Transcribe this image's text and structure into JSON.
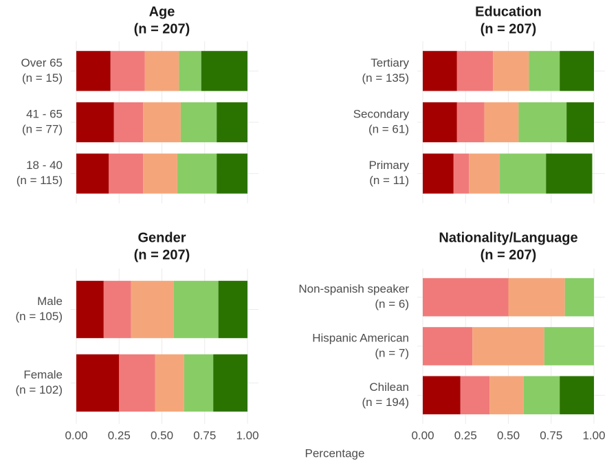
{
  "chart_data": [
    {
      "type": "stacked-bar",
      "title": "Age",
      "subtitle": "(n = 207)",
      "categories": [
        "Over 65",
        "41 - 65",
        "18 - 40"
      ],
      "category_n": [
        "(n = 15)",
        "(n = 77)",
        "(n = 115)"
      ],
      "series": [
        {
          "color": "#a50000",
          "values": [
            0.2,
            0.22,
            0.19
          ]
        },
        {
          "color": "#f07a7a",
          "values": [
            0.2,
            0.17,
            0.2
          ]
        },
        {
          "color": "#f4a67a",
          "values": [
            0.2,
            0.22,
            0.2
          ]
        },
        {
          "color": "#88cc66",
          "values": [
            0.13,
            0.21,
            0.23
          ]
        },
        {
          "color": "#2a7300",
          "values": [
            0.27,
            0.18,
            0.18
          ]
        }
      ],
      "xlim": [
        0,
        1
      ],
      "xticks": [
        0,
        0.25,
        0.5,
        0.75,
        1
      ]
    },
    {
      "type": "stacked-bar",
      "title": "Education",
      "subtitle": "(n = 207)",
      "categories": [
        "Tertiary",
        "Secondary",
        "Primary"
      ],
      "category_n": [
        "(n = 135)",
        "(n = 61)",
        "(n = 11)"
      ],
      "series": [
        {
          "color": "#a50000",
          "values": [
            0.2,
            0.2,
            0.18
          ]
        },
        {
          "color": "#f07a7a",
          "values": [
            0.21,
            0.16,
            0.09
          ]
        },
        {
          "color": "#f4a67a",
          "values": [
            0.21,
            0.2,
            0.18
          ]
        },
        {
          "color": "#88cc66",
          "values": [
            0.18,
            0.28,
            0.27
          ]
        },
        {
          "color": "#2a7300",
          "values": [
            0.2,
            0.16,
            0.27
          ]
        }
      ],
      "xlim": [
        0,
        1
      ],
      "xticks": [
        0,
        0.25,
        0.5,
        0.75,
        1
      ]
    },
    {
      "type": "stacked-bar",
      "title": "Gender",
      "subtitle": "(n = 207)",
      "categories": [
        "Male",
        "Female"
      ],
      "category_n": [
        "(n = 105)",
        "(n = 102)"
      ],
      "series": [
        {
          "color": "#a50000",
          "values": [
            0.16,
            0.25
          ]
        },
        {
          "color": "#f07a7a",
          "values": [
            0.16,
            0.21
          ]
        },
        {
          "color": "#f4a67a",
          "values": [
            0.25,
            0.17
          ]
        },
        {
          "color": "#88cc66",
          "values": [
            0.26,
            0.17
          ]
        },
        {
          "color": "#2a7300",
          "values": [
            0.17,
            0.2
          ]
        }
      ],
      "xlim": [
        0,
        1
      ],
      "xticks": [
        {
          "value": 0,
          "label": "0.00"
        },
        {
          "value": 0.25,
          "label": "0.25"
        },
        {
          "value": 0.5,
          "label": "0.50"
        },
        {
          "value": 0.75,
          "label": "0.75"
        },
        {
          "value": 1,
          "label": "1.00"
        }
      ]
    },
    {
      "type": "stacked-bar",
      "title": "Nationality/Language",
      "subtitle": "(n = 207)",
      "categories": [
        "Non-spanish speaker",
        "Hispanic American",
        "Chilean"
      ],
      "category_n": [
        "(n = 6)",
        "(n = 7)",
        "(n = 194)"
      ],
      "series": [
        {
          "color": "#a50000",
          "values": [
            0,
            0,
            0.22
          ]
        },
        {
          "color": "#f07a7a",
          "values": [
            0.5,
            0.29,
            0.17
          ]
        },
        {
          "color": "#f4a67a",
          "values": [
            0.33,
            0.42,
            0.2
          ]
        },
        {
          "color": "#88cc66",
          "values": [
            0.17,
            0.29,
            0.21
          ]
        },
        {
          "color": "#2a7300",
          "values": [
            0,
            0,
            0.2
          ]
        }
      ],
      "xlim": [
        0,
        1
      ],
      "xticks": [
        {
          "value": 0,
          "label": "0.00"
        },
        {
          "value": 0.25,
          "label": "0.25"
        },
        {
          "value": 0.5,
          "label": "0.50"
        },
        {
          "value": 0.75,
          "label": "0.75"
        },
        {
          "value": 1,
          "label": "1.00"
        }
      ]
    }
  ],
  "xlabel": "Percentage"
}
